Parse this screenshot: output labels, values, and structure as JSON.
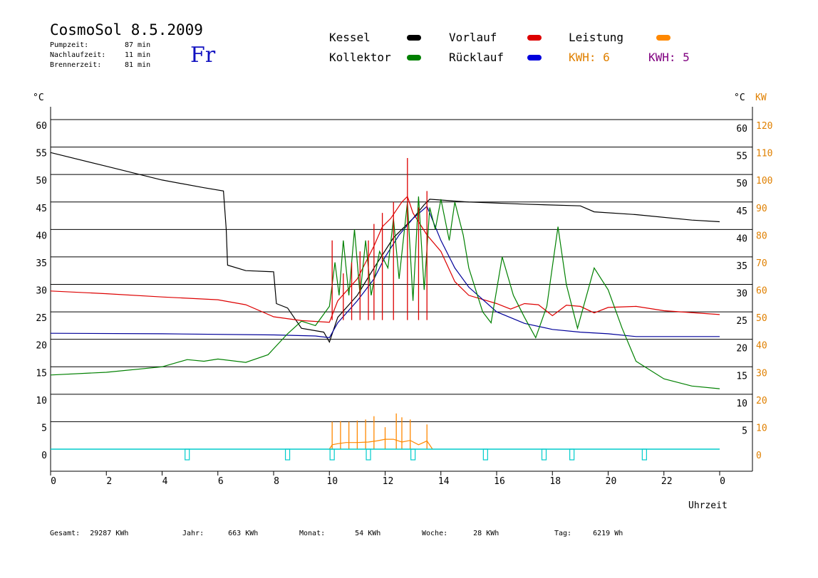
{
  "header": {
    "title": "CosmoSol 8.5.2009",
    "day": "Fr",
    "info": [
      {
        "label": "Pumpzeit:",
        "value": "87 min"
      },
      {
        "label": "Nachlaufzeit:",
        "value": "11 min"
      },
      {
        "label": "Brennerzeit:",
        "value": "81 min"
      }
    ]
  },
  "legend": [
    {
      "label": "Kessel",
      "color": "#000000"
    },
    {
      "label": "Vorlauf",
      "color": "#dd0000"
    },
    {
      "label": "Leistung",
      "color": "#ff8800"
    },
    {
      "label": "Kollektor",
      "color": "#008000"
    },
    {
      "label": "Rücklauf",
      "color": "#0000dd"
    }
  ],
  "kwh_labels": [
    {
      "text": "KWH: 6",
      "color": "#e08000"
    },
    {
      "text": "KWH: 5",
      "color": "#800080"
    }
  ],
  "axis": {
    "left_unit": "°C",
    "right_unit": "°C",
    "right_kw_unit": "KW",
    "left_ticks": [
      60,
      55,
      50,
      45,
      40,
      35,
      30,
      25,
      20,
      15,
      10,
      5,
      0
    ],
    "right_ticks": [
      60,
      55,
      50,
      45,
      40,
      35,
      30,
      25,
      20,
      15,
      10,
      5
    ],
    "kw_ticks": [
      120,
      110,
      100,
      90,
      80,
      70,
      60,
      50,
      40,
      30,
      20,
      10,
      0
    ],
    "x_ticks": [
      "0",
      "2",
      "4",
      "6",
      "8",
      "10",
      "12",
      "14",
      "16",
      "18",
      "20",
      "22",
      "0"
    ],
    "xlabel": "Uhrzeit"
  },
  "footer": [
    {
      "label": "Gesamt:",
      "value": "29287 KWh"
    },
    {
      "label": "Jahr:",
      "value": "663 KWh"
    },
    {
      "label": "Monat:",
      "value": "54 KWh"
    },
    {
      "label": "Woche:",
      "value": "28 KWh"
    },
    {
      "label": "Tag:",
      "value": "6219 Wh"
    }
  ],
  "colors": {
    "kessel": "#000000",
    "vorlauf": "#dd0000",
    "ruecklauf": "#000099",
    "kollektor": "#008000",
    "leistung": "#ff8800",
    "pump": "#00cccc",
    "tick_right": "#e08000"
  },
  "chart_data": {
    "type": "line",
    "xlabel": "Uhrzeit",
    "ylabel": "°C",
    "xlim": [
      0,
      24
    ],
    "ylim": [
      0,
      60
    ],
    "y2lim": [
      0,
      120
    ],
    "series": [
      {
        "name": "Kessel",
        "color": "#000000",
        "points": [
          [
            0,
            54
          ],
          [
            2,
            51.5
          ],
          [
            4,
            49
          ],
          [
            5.5,
            47.6
          ],
          [
            6.2,
            47
          ],
          [
            6.3,
            40
          ],
          [
            6.35,
            33.5
          ],
          [
            7,
            32.5
          ],
          [
            8,
            32.3
          ],
          [
            8.1,
            26.5
          ],
          [
            8.5,
            25.7
          ],
          [
            9,
            22
          ],
          [
            9.8,
            21.3
          ],
          [
            10,
            19.5
          ],
          [
            10.3,
            24
          ],
          [
            11,
            28
          ],
          [
            11.6,
            33
          ],
          [
            12.3,
            38.5
          ],
          [
            13,
            42
          ],
          [
            13.4,
            44.5
          ],
          [
            13.6,
            45.5
          ],
          [
            15,
            45
          ],
          [
            17,
            44.6
          ],
          [
            19,
            44.3
          ],
          [
            19.5,
            43.2
          ],
          [
            21,
            42.7
          ],
          [
            23,
            41.7
          ],
          [
            24,
            41.4
          ]
        ]
      },
      {
        "name": "Vorlauf",
        "color": "#dd0000",
        "points": [
          [
            0,
            28.8
          ],
          [
            2,
            28.3
          ],
          [
            4,
            27.7
          ],
          [
            6,
            27.2
          ],
          [
            7,
            26.3
          ],
          [
            8,
            24.1
          ],
          [
            9,
            23.4
          ],
          [
            10,
            23.1
          ],
          [
            10.3,
            27
          ],
          [
            11,
            31
          ],
          [
            11.6,
            37
          ],
          [
            11.9,
            40.5
          ],
          [
            12.2,
            42
          ],
          [
            12.6,
            45
          ],
          [
            12.8,
            46
          ],
          [
            13,
            43
          ],
          [
            13.5,
            39
          ],
          [
            14,
            36
          ],
          [
            14.5,
            30.5
          ],
          [
            15,
            28
          ],
          [
            16,
            26.5
          ],
          [
            16.5,
            25.5
          ],
          [
            17,
            26.5
          ],
          [
            17.5,
            26.3
          ],
          [
            18,
            24.3
          ],
          [
            18.5,
            26.2
          ],
          [
            19,
            26
          ],
          [
            19.5,
            24.8
          ],
          [
            20,
            25.8
          ],
          [
            21,
            26
          ],
          [
            22,
            25.2
          ],
          [
            24,
            24.5
          ]
        ]
      },
      {
        "name": "Rücklauf",
        "color": "#000099",
        "points": [
          [
            0,
            21.1
          ],
          [
            4,
            21
          ],
          [
            8,
            20.8
          ],
          [
            9.5,
            20.6
          ],
          [
            10,
            20.3
          ],
          [
            10.3,
            23
          ],
          [
            11,
            27
          ],
          [
            11.6,
            31
          ],
          [
            12,
            35
          ],
          [
            12.5,
            39
          ],
          [
            13,
            42
          ],
          [
            13.5,
            44.2
          ],
          [
            14,
            38
          ],
          [
            14.5,
            33
          ],
          [
            15,
            29.5
          ],
          [
            16,
            25
          ],
          [
            17,
            22.9
          ],
          [
            18,
            21.8
          ],
          [
            19,
            21.3
          ],
          [
            20,
            21
          ],
          [
            21,
            20.5
          ],
          [
            24,
            20.5
          ]
        ]
      },
      {
        "name": "Kollektor",
        "color": "#008000",
        "points": [
          [
            0,
            13.5
          ],
          [
            2,
            14
          ],
          [
            4,
            15
          ],
          [
            4.9,
            16.3
          ],
          [
            5.5,
            16
          ],
          [
            6,
            16.4
          ],
          [
            7,
            15.8
          ],
          [
            7.8,
            17.2
          ],
          [
            8.5,
            21
          ],
          [
            9,
            23.3
          ],
          [
            9.5,
            22.5
          ],
          [
            10,
            26
          ],
          [
            10.2,
            34
          ],
          [
            10.35,
            28
          ],
          [
            10.5,
            38
          ],
          [
            10.7,
            28
          ],
          [
            10.9,
            40
          ],
          [
            11.1,
            28
          ],
          [
            11.3,
            38
          ],
          [
            11.5,
            28
          ],
          [
            11.8,
            36
          ],
          [
            12.1,
            33
          ],
          [
            12.3,
            42
          ],
          [
            12.5,
            31
          ],
          [
            12.8,
            45
          ],
          [
            13,
            27
          ],
          [
            13.2,
            46
          ],
          [
            13.4,
            29
          ],
          [
            13.6,
            44
          ],
          [
            13.8,
            40
          ],
          [
            14,
            45.5
          ],
          [
            14.3,
            38
          ],
          [
            14.5,
            45
          ],
          [
            14.8,
            39
          ],
          [
            15,
            33
          ],
          [
            15.5,
            25
          ],
          [
            15.8,
            23
          ],
          [
            16.2,
            35
          ],
          [
            16.6,
            28
          ],
          [
            17,
            24
          ],
          [
            17.4,
            20.3
          ],
          [
            17.8,
            26
          ],
          [
            18.2,
            40.5
          ],
          [
            18.5,
            30
          ],
          [
            18.9,
            22
          ],
          [
            19.5,
            33
          ],
          [
            20,
            29
          ],
          [
            20.5,
            22
          ],
          [
            21,
            16
          ],
          [
            22,
            12.8
          ],
          [
            23,
            11.5
          ],
          [
            24,
            11
          ]
        ]
      },
      {
        "name": "Leistung",
        "color": "#ff8800",
        "points": [
          [
            10,
            0
          ],
          [
            10.1,
            0.8
          ],
          [
            10.3,
            1
          ],
          [
            10.6,
            1.2
          ],
          [
            11,
            1.2
          ],
          [
            11.4,
            1.3
          ],
          [
            11.7,
            1.5
          ],
          [
            12,
            1.8
          ],
          [
            12.3,
            1.8
          ],
          [
            12.6,
            1.3
          ],
          [
            12.9,
            1.6
          ],
          [
            13.2,
            0.8
          ],
          [
            13.5,
            1.5
          ],
          [
            13.7,
            0
          ]
        ]
      }
    ],
    "spikes": {
      "vorlauf_max": [
        [
          10.1,
          38
        ],
        [
          10.5,
          32
        ],
        [
          10.8,
          34
        ],
        [
          11.1,
          36
        ],
        [
          11.4,
          38
        ],
        [
          11.6,
          41
        ],
        [
          11.9,
          43
        ],
        [
          12.3,
          45
        ],
        [
          12.8,
          53
        ],
        [
          13.2,
          44
        ],
        [
          13.5,
          47
        ]
      ],
      "leistung_max": [
        [
          10.1,
          5
        ],
        [
          10.4,
          5.1
        ],
        [
          10.7,
          5
        ],
        [
          11.0,
          5.2
        ],
        [
          11.3,
          5.4
        ],
        [
          11.6,
          6
        ],
        [
          12.0,
          4
        ],
        [
          12.4,
          6.5
        ],
        [
          12.6,
          5.8
        ],
        [
          12.9,
          5.4
        ],
        [
          13.5,
          4.5
        ]
      ]
    },
    "pump_markers": [
      4.9,
      8.5,
      10.1,
      11.4,
      13.0,
      15.6,
      17.7,
      18.7,
      21.3
    ]
  }
}
